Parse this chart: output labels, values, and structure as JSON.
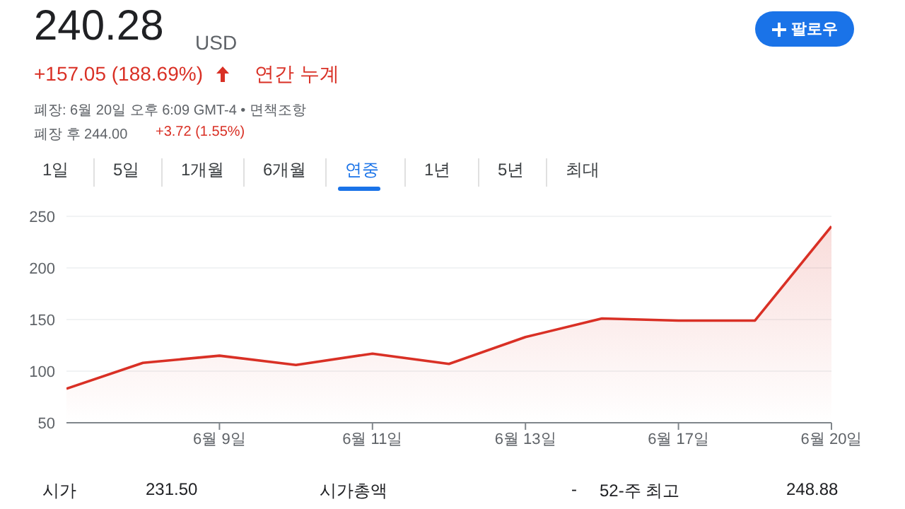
{
  "chart_data": {
    "type": "area",
    "title": "240.28",
    "annotations": [
      "USD",
      "+157.05 (188.69%)",
      "연간 누계",
      "폐장: 6월 20일 오후 6:09 GMT-4 • 면책조항",
      "폐장 후 244.00",
      "+3.72 (1.55%)",
      "팔로우",
      "1일",
      "5일",
      "1개월",
      "6개월",
      "연중",
      "1년",
      "5년",
      "최대",
      "시가",
      "231.50",
      "시가총액",
      "-",
      "52-주 최고",
      "248.88"
    ],
    "categories": [
      null,
      null,
      "6월 9일",
      null,
      "6월 11일",
      null,
      "6월 13일",
      null,
      "6월 17일",
      null,
      "6월 20일"
    ],
    "series": [
      {
        "color": "#d93025",
        "values": [
          83,
          108,
          115,
          106,
          117,
          107,
          133,
          151,
          149,
          149,
          240.28
        ]
      }
    ],
    "ylim": [
      50,
      250
    ],
    "yticks": [
      50,
      100,
      150,
      200,
      250
    ],
    "grid": "y"
  }
}
